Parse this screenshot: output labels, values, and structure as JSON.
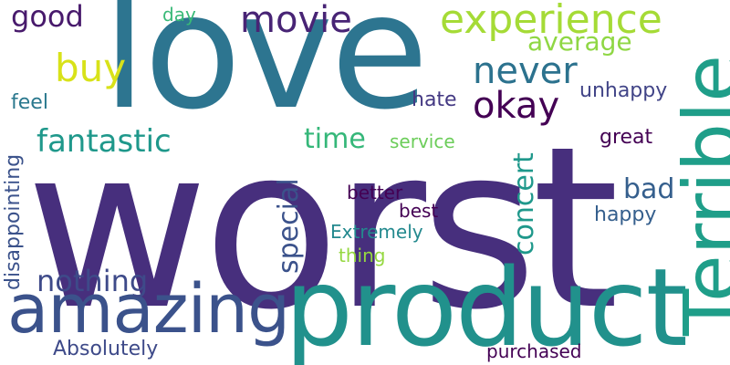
{
  "words": {
    "worst": "worst",
    "love": "love",
    "product": "product",
    "terrible": "Terrible",
    "amazing": "amazing",
    "experience": "experience",
    "movie": "movie",
    "never": "never",
    "okay": "okay",
    "buy": "buy",
    "good": "good",
    "fantastic": "fantastic",
    "nothing": "nothing",
    "average": "average",
    "time": "time",
    "special": "special",
    "concert": "concert",
    "bad": "bad",
    "unhappy": "unhappy",
    "great": "great",
    "happy": "happy",
    "hate": "hate",
    "service": "service",
    "feel": "feel",
    "day": "day",
    "better": "better",
    "best": "best",
    "extremely": "Extremely",
    "thing": "thing",
    "absolutely": "Absolutely",
    "purchased": "purchased",
    "disappointing": "disappointing"
  },
  "colors": {
    "worst": "#472f7d",
    "love": "#2d7590",
    "product": "#21918c",
    "terrible": "#1f9e89",
    "amazing": "#3b528b",
    "experience": "#a5db36",
    "movie": "#482475",
    "never": "#2c728e",
    "okay": "#440154",
    "buy": "#d8e219",
    "good": "#481a6c",
    "fantastic": "#1f988b",
    "nothing": "#3e4a89",
    "average": "#8fd744",
    "time": "#35b779",
    "special": "#3b528b",
    "concert": "#1f988b",
    "bad": "#355f8d",
    "unhappy": "#414487",
    "great": "#440154",
    "happy": "#355f8d",
    "hate": "#443983",
    "service": "#6ccd5a",
    "feel": "#2a788e",
    "day": "#38b977",
    "better": "#440154",
    "best": "#440154",
    "extremely": "#23898e",
    "thing": "#95d840",
    "absolutely": "#3e4a89",
    "purchased": "#440154",
    "disappointing": "#3b528b"
  }
}
